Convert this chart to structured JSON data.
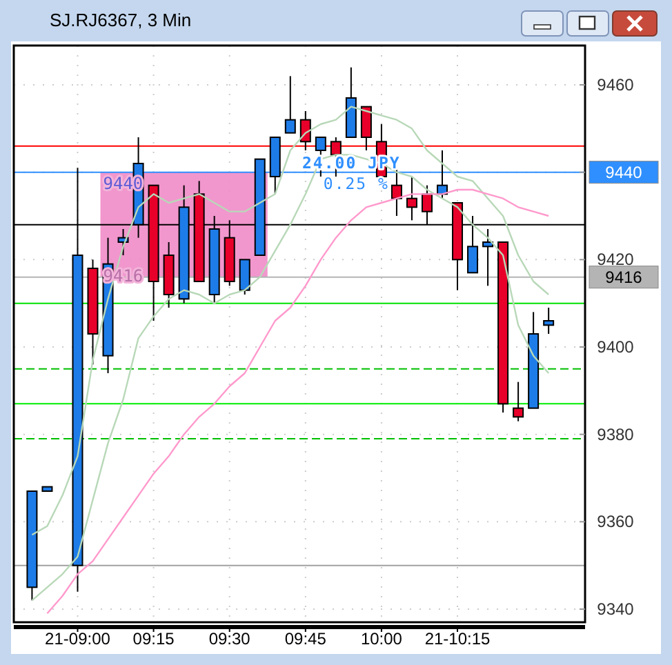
{
  "chart_data": {
    "type": "candlestick",
    "title": "SJ.RJ6367, 3 Min",
    "categories": [
      null,
      null,
      null,
      "21-09:00",
      null,
      null,
      null,
      null,
      "09:15",
      null,
      null,
      null,
      null,
      "09:30",
      null,
      null,
      null,
      null,
      "09:45",
      null,
      null,
      null,
      null,
      "10:00",
      null,
      null,
      null,
      null,
      "21-10:15",
      null,
      null,
      null,
      null,
      null,
      null
    ],
    "ohlc": [
      [
        9345,
        9367,
        9342,
        9367
      ],
      [
        9367,
        9368,
        9367,
        9368
      ],
      null,
      [
        9350,
        9441,
        9344,
        9421
      ],
      [
        9418,
        9420,
        9396,
        9403
      ],
      [
        9398,
        9425,
        9394,
        9419
      ],
      [
        9424,
        9427,
        9421,
        9425
      ],
      [
        9428,
        9448,
        9425,
        9442
      ],
      [
        9437,
        9437,
        9406,
        9415
      ],
      [
        9421,
        9424,
        9409,
        9412
      ],
      [
        9411,
        9437,
        9410,
        9432
      ],
      [
        9435,
        9438,
        9415,
        9415
      ],
      [
        9412,
        9430,
        9410,
        9427
      ],
      [
        9425,
        9429,
        9414,
        9415
      ],
      [
        9413,
        9420,
        9412,
        9420
      ],
      [
        9421,
        9443,
        9421,
        9443
      ],
      [
        9439,
        9448,
        9435,
        9448
      ],
      [
        9449,
        9462,
        9449,
        9452
      ],
      [
        9452,
        9454,
        9445,
        9447
      ],
      [
        9445,
        9448,
        9439,
        9448
      ],
      [
        9447,
        9448,
        9439,
        9444
      ],
      [
        9448,
        9464,
        9448,
        9457
      ],
      [
        9455,
        9455,
        9445,
        9448
      ],
      [
        9447,
        9451,
        9439,
        9439
      ],
      [
        9437,
        9441,
        9430,
        9434
      ],
      [
        9434,
        9439,
        9429,
        9432
      ],
      [
        9435,
        9437,
        9428,
        9431
      ],
      [
        9435,
        9445,
        9434,
        9437
      ],
      [
        9433,
        9433,
        9413,
        9420
      ],
      [
        9417,
        9430,
        9417,
        9423
      ],
      [
        9423,
        9427,
        9414,
        9424
      ],
      [
        9424,
        9424,
        9385,
        9387
      ],
      [
        9386,
        9392,
        9383,
        9384
      ],
      [
        9386,
        9408,
        9386,
        9403
      ],
      [
        9405,
        9409,
        9403,
        9406
      ]
    ],
    "colors": [
      "#1e7ce8",
      "#1e7ce8",
      null,
      "#1e7ce8",
      "#e8002a",
      "#1e7ce8",
      "#1e7ce8",
      "#1e7ce8",
      "#e8002a",
      "#e8002a",
      "#1e7ce8",
      "#e8002a",
      "#1e7ce8",
      "#e8002a",
      "#1e7ce8",
      "#1e7ce8",
      "#1e7ce8",
      "#1e7ce8",
      "#e8002a",
      "#1e7ce8",
      "#e8002a",
      "#1e7ce8",
      "#e8002a",
      "#e8002a",
      "#e8002a",
      "#e8002a",
      "#e8002a",
      "#1e7ce8",
      "#e8002a",
      "#1e7ce8",
      "#1e7ce8",
      "#e8002a",
      "#e8002a",
      "#1e7ce8",
      "#1e7ce8"
    ],
    "series": [
      {
        "type": "line",
        "color": "#b8d8b8",
        "values": [
          9357,
          9359,
          9366,
          9375,
          9397,
          9411,
          9423,
          9432,
          9435,
          9433,
          9434,
          9435,
          9433,
          9431,
          9431,
          9433,
          9435,
          9445,
          9449,
          9451,
          9452,
          9455,
          9454,
          9453,
          9452,
          9450,
          9445,
          9442,
          9439,
          9438,
          9434,
          9430,
          9421,
          9415,
          9412
        ]
      },
      {
        "type": "line",
        "color": "#b8d8b8",
        "values": [
          9342,
          9345,
          9348,
          9352,
          9365,
          9378,
          9388,
          9402,
          9407,
          9411,
          9413,
          9412,
          9410,
          9412,
          9413,
          9416,
          9422,
          9428,
          9435,
          9443,
          9444,
          9444,
          9443,
          9442,
          9440,
          9439,
          9436,
          9434,
          9432,
          9428,
          9425,
          9421,
          9405,
          9398,
          9394
        ]
      },
      {
        "type": "line",
        "color": "#ff99cc",
        "values": [
          null,
          9339,
          9343,
          9348,
          9351,
          9356,
          9361,
          9366,
          9371,
          9375,
          9380,
          9384,
          9387,
          9391,
          9394,
          9400,
          9406,
          9409,
          9414,
          9420,
          9425,
          9429,
          9432,
          9433,
          9434,
          9435,
          9435,
          9435,
          9436,
          9436,
          9435,
          9434,
          9432,
          9431,
          9430
        ]
      }
    ],
    "ylim": [
      9337,
      9469
    ],
    "yticks": [
      9340,
      9360,
      9380,
      9400,
      9420,
      {
        "value": 9440,
        "label": null
      },
      9460
    ],
    "grid": true,
    "ref_lines": [
      {
        "axis": "y",
        "value": 9446,
        "color": "#ff0000"
      },
      {
        "axis": "y",
        "value": 9428,
        "color": "#000000"
      },
      {
        "axis": "y",
        "value": 9410,
        "color": "#00e000"
      },
      {
        "axis": "y",
        "value": 9395,
        "color": "#00c000",
        "line_style": "dashed"
      },
      {
        "axis": "y",
        "value": 9387,
        "color": "#00ee00"
      },
      {
        "axis": "y",
        "value": 9379,
        "color": "#00c000",
        "line_style": "dashed"
      },
      {
        "axis": "y",
        "value": 9350,
        "color": "#a0a0a0"
      },
      {
        "axis": "y",
        "value": 9440,
        "label": "9440",
        "color": "#2f8fff"
      },
      {
        "axis": "y",
        "value": 9416,
        "label": "9416",
        "color": "#b4b4b4"
      }
    ],
    "bands": [
      {
        "axis": "y",
        "from": 9416,
        "to": 9440,
        "color": "#f08cc8"
      }
    ],
    "annotations": [
      {
        "text": "9440",
        "y": 9440
      },
      {
        "text": "9416",
        "y": 9416
      },
      {
        "text": "24.00 JPY",
        "y": 9440
      },
      "0.25 %"
    ]
  }
}
